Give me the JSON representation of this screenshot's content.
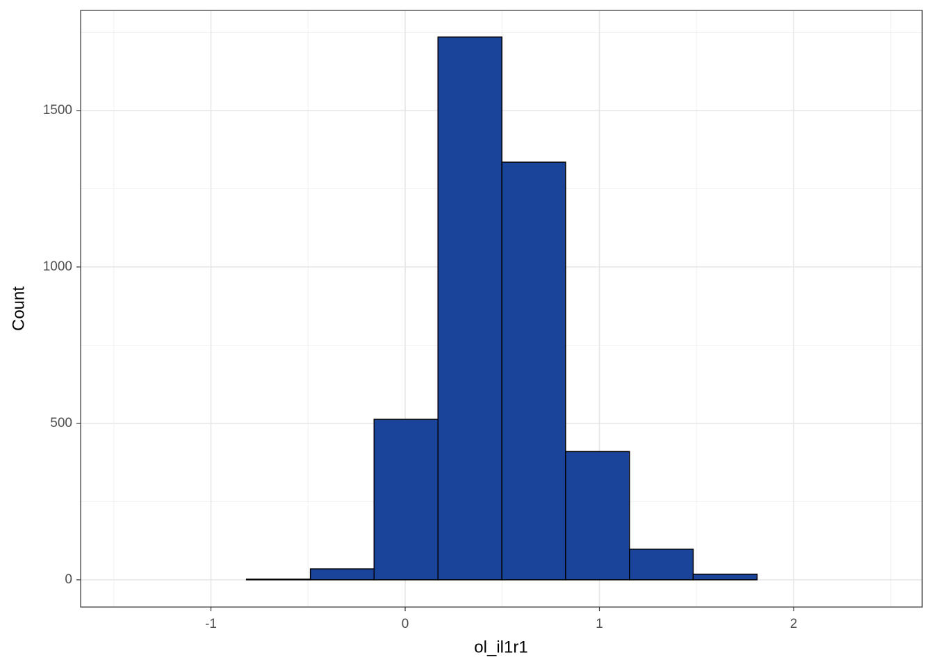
{
  "chart_data": {
    "type": "histogram",
    "x_label": "ol_il1r1",
    "y_label": "Count",
    "bins": [
      -1.474,
      -1.145,
      -0.817,
      -0.488,
      -0.16,
      0.169,
      0.498,
      0.826,
      1.155,
      1.483,
      1.812,
      2.14,
      2.469
    ],
    "values": [
      0,
      0,
      2,
      35,
      513,
      1735,
      1335,
      410,
      98,
      18,
      0,
      0
    ],
    "color": "#1a4499",
    "edge_color": "#000000",
    "xlim": [
      -1.671,
      2.662
    ],
    "ylim": [
      -87,
      1820
    ],
    "xticks": [
      -1,
      0,
      1,
      2
    ],
    "yticks": [
      0,
      500,
      1000,
      1500
    ],
    "x_minor_ticks": [
      -1.5,
      -0.5,
      0.5,
      1.5,
      2.5
    ],
    "y_minor_ticks": [
      250,
      750,
      1250,
      1750
    ],
    "grid": true
  }
}
